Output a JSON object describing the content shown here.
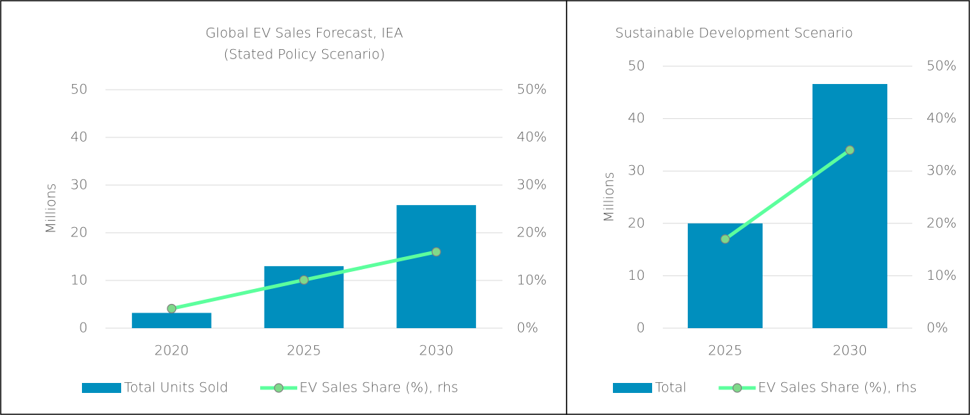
{
  "chart_data": [
    {
      "type": "bar_line",
      "title": [
        "Global EV Sales Forecast, IEA",
        "(Stated Policy Scenario)"
      ],
      "y_label": "Millions",
      "categories": [
        "2020",
        "2025",
        "2030"
      ],
      "series": [
        {
          "name": "Total Units Sold",
          "type": "bar",
          "color": "#008fbe",
          "values": [
            3.2,
            13.0,
            25.8
          ]
        },
        {
          "name": "EV Sales Share (%), rhs",
          "type": "line",
          "axis": "y2",
          "color": "#5cff9d",
          "marker_color": "#7fd98a",
          "values": [
            4.1,
            10.1,
            16.0
          ]
        }
      ],
      "ylim": [
        0,
        50
      ],
      "yticks": [
        0,
        10,
        20,
        30,
        40,
        50
      ],
      "y2lim": [
        0,
        50
      ],
      "y2ticks": [
        {
          "value": 0,
          "label": "0%"
        },
        {
          "value": 10,
          "label": "10%"
        },
        {
          "value": 20,
          "label": "20%"
        },
        {
          "value": 30,
          "label": "30%"
        },
        {
          "value": 40,
          "label": "40%"
        },
        {
          "value": 50,
          "label": "50%"
        }
      ],
      "grid": true,
      "legend": "bottom"
    },
    {
      "type": "bar_line",
      "title": [
        "Sustainable Development Scenario"
      ],
      "y_label": "Millions",
      "categories": [
        "2025",
        "2030"
      ],
      "series": [
        {
          "name": "Total",
          "type": "bar",
          "color": "#008fbe",
          "values": [
            20.0,
            46.6
          ]
        },
        {
          "name": "EV Sales Share (%), rhs",
          "type": "line",
          "axis": "y2",
          "color": "#5cff9d",
          "marker_color": "#7fd98a",
          "values": [
            17.0,
            34.0
          ]
        }
      ],
      "ylim": [
        0,
        50
      ],
      "yticks": [
        0,
        10,
        20,
        30,
        40,
        50
      ],
      "y2lim": [
        0,
        50
      ],
      "y2ticks": [
        {
          "value": 0,
          "label": "0%"
        },
        {
          "value": 10,
          "label": "10%"
        },
        {
          "value": 20,
          "label": "20%"
        },
        {
          "value": 30,
          "label": "30%"
        },
        {
          "value": 40,
          "label": "40%"
        },
        {
          "value": 50,
          "label": "50%"
        }
      ],
      "grid": true,
      "legend": "bottom"
    }
  ]
}
